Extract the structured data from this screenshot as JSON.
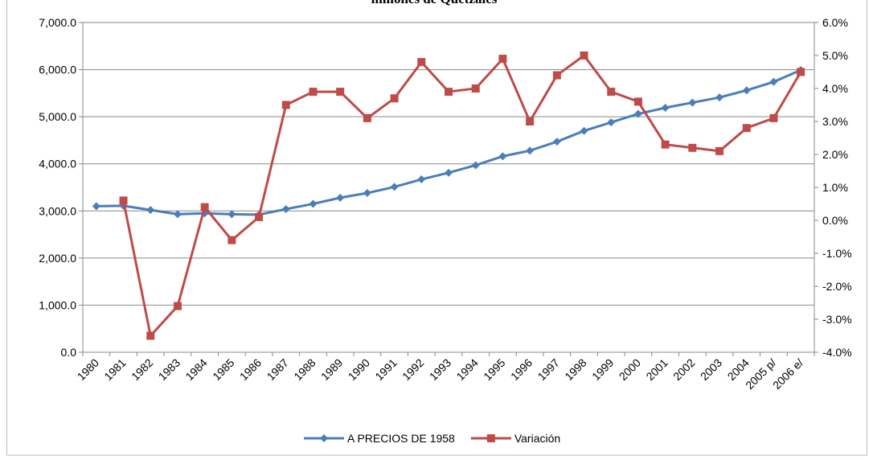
{
  "chart_data": {
    "type": "line",
    "title": "millones de Quetzales",
    "categories": [
      "1980",
      "1981",
      "1982",
      "1983",
      "1984",
      "1985",
      "1986",
      "1987",
      "1988",
      "1989",
      "1990",
      "1991",
      "1992",
      "1993",
      "1994",
      "1995",
      "1996",
      "1997",
      "1998",
      "1999",
      "2000",
      "2001",
      "2002",
      "2003",
      "2004",
      "2005 p/",
      "2006 e/"
    ],
    "series": [
      {
        "name": "A PRECIOS DE 1958",
        "color": "#4a7ebb",
        "marker": "diamond",
        "values": [
          3100,
          3110,
          3020,
          2930,
          2950,
          2930,
          2920,
          3040,
          3150,
          3280,
          3380,
          3510,
          3670,
          3810,
          3970,
          4160,
          4280,
          4470,
          4700,
          4880,
          5060,
          5190,
          5300,
          5410,
          5560,
          5740,
          5990
        ]
      },
      {
        "name": "Variación",
        "color": "#be4b48",
        "marker": "square",
        "axis": "y2",
        "values": [
          null,
          0.6,
          -3.5,
          -2.6,
          0.4,
          -0.6,
          0.1,
          3.5,
          3.9,
          3.9,
          3.1,
          3.7,
          4.8,
          3.9,
          4.0,
          4.9,
          3.0,
          4.4,
          5.0,
          3.9,
          3.6,
          2.3,
          2.2,
          2.1,
          2.8,
          3.1,
          4.5
        ]
      }
    ],
    "ylim": [
      0,
      7000
    ],
    "yticks": [
      {
        "value": 0,
        "label": "0.0"
      },
      {
        "value": 1000,
        "label": "1,000.0"
      },
      {
        "value": 2000,
        "label": "2,000.0"
      },
      {
        "value": 3000,
        "label": "3,000.0"
      },
      {
        "value": 4000,
        "label": "4,000.0"
      },
      {
        "value": 5000,
        "label": "5,000.0"
      },
      {
        "value": 6000,
        "label": "6,000.0"
      },
      {
        "value": 7000,
        "label": "7,000.0"
      }
    ],
    "y2lim": [
      -4,
      6
    ],
    "y2ticks": [
      {
        "value": -4,
        "label": "-4.0%"
      },
      {
        "value": -3,
        "label": "-3.0%"
      },
      {
        "value": -2,
        "label": "-2.0%"
      },
      {
        "value": -1,
        "label": "-1.0%"
      },
      {
        "value": 0,
        "label": "0.0%"
      },
      {
        "value": 1,
        "label": "1.0%"
      },
      {
        "value": 2,
        "label": "2.0%"
      },
      {
        "value": 3,
        "label": "3.0%"
      },
      {
        "value": 4,
        "label": "4.0%"
      },
      {
        "value": 5,
        "label": "5.0%"
      },
      {
        "value": 6,
        "label": "6.0%"
      }
    ],
    "grid": true,
    "legend": "bottom"
  }
}
